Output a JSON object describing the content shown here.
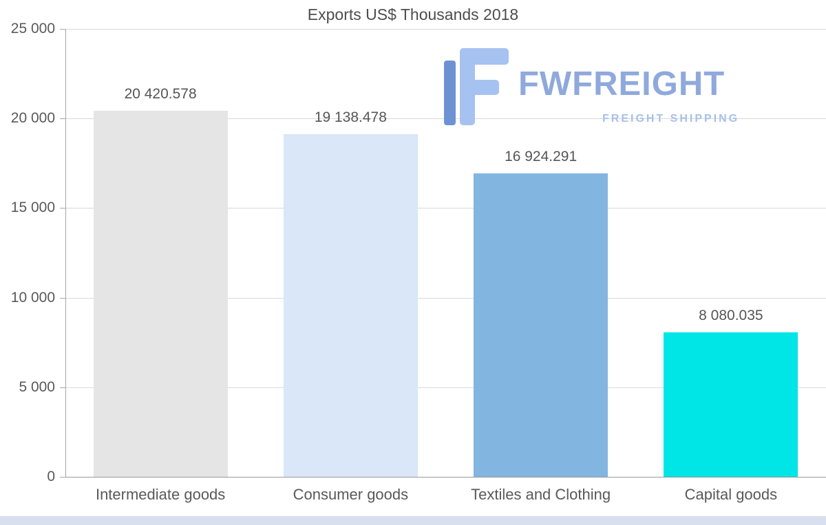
{
  "chart_data": {
    "type": "bar",
    "title": "Exports US$ Thousands 2018",
    "categories": [
      "Intermediate goods",
      "Consumer goods",
      "Textiles and Clothing",
      "Capital goods"
    ],
    "values": [
      20420.578,
      19138.478,
      16924.291,
      8080.035
    ],
    "value_labels": [
      "20 420.578",
      "19 138.478",
      "16 924.291",
      "8 080.035"
    ],
    "bar_colors": [
      "#e5e5e5",
      "#d9e7f8",
      "#82b5e0",
      "#00e5e6"
    ],
    "ylim": [
      0,
      25000
    ],
    "ytick_values": [
      0,
      5000,
      10000,
      15000,
      20000,
      25000
    ],
    "ytick_labels": [
      "0",
      "5 000",
      "10 000",
      "15 000",
      "20 000",
      "25 000"
    ],
    "grid": true,
    "grid_color": "#d9d9d9",
    "axis_color": "#a6a6a6",
    "legend": false
  },
  "watermark": {
    "brand": "FWFREIGHT",
    "tagline": "FREIGHT SHIPPING",
    "brand_color": "#8fa9dd",
    "tagline_color": "#a8c0ea",
    "icon_dark_color": "#6d92d4",
    "icon_light_color": "#a6c2f0"
  }
}
